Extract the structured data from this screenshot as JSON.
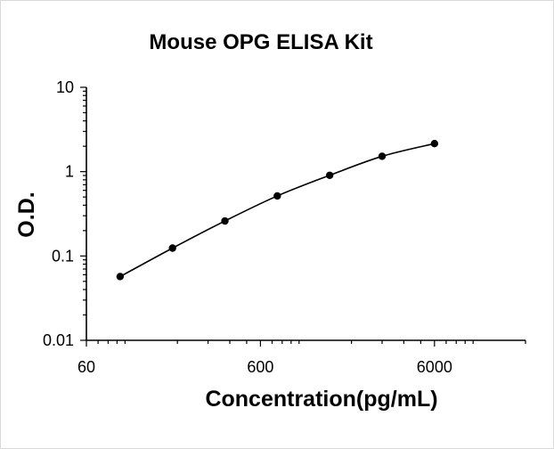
{
  "chart_data": {
    "type": "scatter",
    "title": "Mouse OPG ELISA Kit",
    "xlabel": "Concentration(pg/mL)",
    "ylabel": "O.D.",
    "x_scale": "log",
    "y_scale": "log",
    "xlim": [
      60,
      20000
    ],
    "ylim": [
      0.01,
      10
    ],
    "x_ticks": [
      60,
      600,
      6000
    ],
    "x_tick_labels": [
      "60",
      "600",
      "6000"
    ],
    "y_ticks": [
      0.01,
      0.1,
      1,
      10
    ],
    "y_tick_labels": [
      "0.01",
      "0.1",
      "1",
      "10"
    ],
    "grid": false,
    "legend": "none",
    "colors": {
      "marker": "#000000",
      "line": "#000000",
      "axis": "#000000"
    },
    "series": [
      {
        "x": [
          93.75,
          187.5,
          375,
          750,
          1500,
          3000,
          6000
        ],
        "y": [
          0.057,
          0.124,
          0.26,
          0.515,
          0.905,
          1.52,
          2.15
        ],
        "fit_curve": true
      }
    ]
  }
}
